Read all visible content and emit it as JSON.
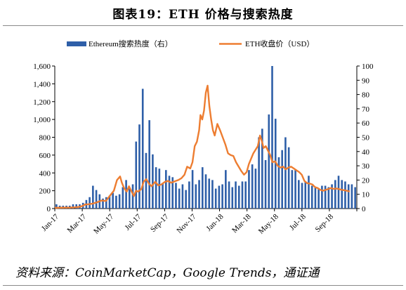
{
  "figure": {
    "title": "图表19：ETH 价格与搜索热度",
    "source": "资料来源：CoinMarketCap，Google Trends，通证通"
  },
  "chart_data": {
    "type": "bar+line",
    "title": "图表19：ETH 价格与搜索热度",
    "x_tick_labels": [
      "Jan-17",
      "Mar-17",
      "May-17",
      "Jul-17",
      "Sep-17",
      "Nov-17",
      "Jan-18",
      "Mar-18",
      "May-18",
      "Jul-18",
      "Sep-18"
    ],
    "left_axis": {
      "min": 0,
      "max": 1600,
      "ticks": [
        "0",
        "200",
        "400",
        "600",
        "800",
        "1,000",
        "1,200",
        "1,400",
        "1,600"
      ]
    },
    "right_axis": {
      "min": 0,
      "max": 100,
      "ticks": [
        "0",
        "10",
        "20",
        "30",
        "40",
        "50",
        "60",
        "70",
        "80",
        "90",
        "100"
      ]
    },
    "legend_placement": "top",
    "series": [
      {
        "name": "Ethereum搜索热度（右）",
        "kind": "bar",
        "axis": "right",
        "color": "#2e5fa8",
        "weeks": 91,
        "values": [
          3,
          2,
          2,
          2,
          2,
          3,
          3,
          3,
          4,
          6,
          8,
          16,
          13,
          10,
          7,
          8,
          9,
          11,
          9,
          10,
          15,
          20,
          14,
          17,
          47,
          59,
          84,
          39,
          62,
          38,
          29,
          28,
          18,
          27,
          23,
          22,
          18,
          14,
          17,
          13,
          19,
          27,
          17,
          20,
          29,
          24,
          21,
          20,
          14,
          16,
          17,
          27,
          19,
          15,
          19,
          16,
          19,
          19,
          27,
          31,
          28,
          50,
          56,
          34,
          66,
          100,
          63,
          36,
          41,
          50,
          43,
          27,
          27,
          20,
          18,
          19,
          23,
          16,
          15,
          14,
          16,
          16,
          15,
          17,
          20,
          23,
          20,
          19,
          17,
          17,
          15
        ]
      },
      {
        "name": "ETH收盘价（USD）",
        "kind": "line",
        "axis": "left",
        "color": "#ed7d31",
        "days": 680,
        "points": [
          [
            0,
            8
          ],
          [
            20,
            10
          ],
          [
            35,
            11
          ],
          [
            45,
            13
          ],
          [
            55,
            19
          ],
          [
            62,
            28
          ],
          [
            68,
            45
          ],
          [
            75,
            48
          ],
          [
            85,
            55
          ],
          [
            95,
            70
          ],
          [
            105,
            90
          ],
          [
            115,
            85
          ],
          [
            125,
            150
          ],
          [
            133,
            200
          ],
          [
            140,
            320
          ],
          [
            147,
            360
          ],
          [
            151,
            290
          ],
          [
            156,
            230
          ],
          [
            162,
            190
          ],
          [
            167,
            250
          ],
          [
            172,
            200
          ],
          [
            178,
            140
          ],
          [
            183,
            200
          ],
          [
            188,
            190
          ],
          [
            195,
            220
          ],
          [
            200,
            300
          ],
          [
            206,
            330
          ],
          [
            212,
            280
          ],
          [
            218,
            250
          ],
          [
            226,
            300
          ],
          [
            233,
            260
          ],
          [
            240,
            270
          ],
          [
            248,
            300
          ],
          [
            255,
            310
          ],
          [
            262,
            290
          ],
          [
            270,
            305
          ],
          [
            278,
            320
          ],
          [
            285,
            340
          ],
          [
            292,
            380
          ],
          [
            298,
            470
          ],
          [
            305,
            450
          ],
          [
            310,
            520
          ],
          [
            315,
            700
          ],
          [
            320,
            750
          ],
          [
            325,
            880
          ],
          [
            328,
            1050
          ],
          [
            332,
            1000
          ],
          [
            336,
            1100
          ],
          [
            340,
            1300
          ],
          [
            344,
            1380
          ],
          [
            348,
            1150
          ],
          [
            352,
            1000
          ],
          [
            356,
            880
          ],
          [
            360,
            820
          ],
          [
            366,
            950
          ],
          [
            372,
            880
          ],
          [
            378,
            800
          ],
          [
            384,
            720
          ],
          [
            390,
            620
          ],
          [
            396,
            600
          ],
          [
            402,
            590
          ],
          [
            408,
            520
          ],
          [
            414,
            470
          ],
          [
            420,
            420
          ],
          [
            426,
            380
          ],
          [
            432,
            410
          ],
          [
            437,
            500
          ],
          [
            442,
            560
          ],
          [
            447,
            620
          ],
          [
            452,
            660
          ],
          [
            457,
            700
          ],
          [
            462,
            820
          ],
          [
            466,
            760
          ],
          [
            470,
            680
          ],
          [
            475,
            700
          ],
          [
            480,
            650
          ],
          [
            485,
            600
          ],
          [
            490,
            520
          ],
          [
            496,
            530
          ],
          [
            502,
            480
          ],
          [
            508,
            460
          ],
          [
            514,
            470
          ],
          [
            520,
            440
          ],
          [
            526,
            460
          ],
          [
            532,
            470
          ],
          [
            538,
            450
          ],
          [
            544,
            430
          ],
          [
            550,
            410
          ],
          [
            556,
            380
          ],
          [
            562,
            310
          ],
          [
            568,
            285
          ],
          [
            574,
            280
          ],
          [
            580,
            270
          ],
          [
            586,
            240
          ],
          [
            592,
            230
          ],
          [
            598,
            210
          ],
          [
            604,
            200
          ],
          [
            610,
            210
          ],
          [
            616,
            220
          ],
          [
            622,
            230
          ],
          [
            628,
            220
          ],
          [
            634,
            225
          ],
          [
            640,
            218
          ],
          [
            646,
            210
          ],
          [
            652,
            205
          ],
          [
            658,
            200
          ],
          [
            664,
            190
          ]
        ]
      }
    ]
  }
}
